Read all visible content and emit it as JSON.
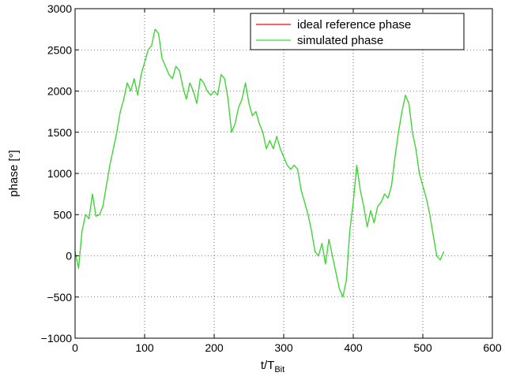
{
  "chart_data": {
    "type": "line",
    "title": "",
    "xlabel_main": "t/T",
    "xlabel_sub": "Bit",
    "ylabel": "phase [°]",
    "xlim": [
      0,
      600
    ],
    "ylim": [
      -1000,
      3000
    ],
    "xticks": [
      0,
      100,
      200,
      300,
      400,
      500,
      600
    ],
    "yticks": [
      -1000,
      -500,
      0,
      500,
      1000,
      1500,
      2000,
      2500,
      3000
    ],
    "grid": true,
    "legend_position": "top-right",
    "series": [
      {
        "name": "ideal reference phase",
        "color": "#ff0000",
        "x": [
          0,
          5,
          10,
          15,
          20,
          25,
          30,
          35,
          40,
          45,
          50,
          55,
          60,
          65,
          70,
          75,
          80,
          85,
          90,
          95,
          100,
          105,
          110,
          115,
          120,
          125,
          130,
          135,
          140,
          145,
          150,
          155,
          160,
          165,
          170,
          175,
          180,
          185,
          190,
          195,
          200,
          205,
          210,
          215,
          220,
          225,
          230,
          235,
          240,
          245,
          250,
          255,
          260,
          265,
          270,
          275,
          280,
          285,
          290,
          295,
          300,
          305,
          310,
          315,
          320,
          325,
          330,
          335,
          340,
          345,
          350,
          355,
          360,
          365,
          370,
          375,
          380,
          385,
          390,
          395,
          400,
          405,
          410,
          415,
          420,
          425,
          430,
          435,
          440,
          445,
          450,
          455,
          460,
          465,
          470,
          475,
          480,
          485,
          490,
          495,
          500,
          505,
          510,
          515,
          520,
          525,
          530
        ],
        "y": [
          50,
          -150,
          300,
          500,
          450,
          750,
          480,
          500,
          600,
          850,
          1100,
          1300,
          1500,
          1750,
          1900,
          2100,
          2000,
          2150,
          1950,
          2200,
          2350,
          2500,
          2550,
          2750,
          2700,
          2400,
          2300,
          2200,
          2150,
          2300,
          2250,
          2050,
          1900,
          2100,
          2000,
          1850,
          2150,
          2100,
          2000,
          1950,
          2000,
          1950,
          2200,
          2150,
          1900,
          1500,
          1600,
          1800,
          1900,
          2100,
          1850,
          1700,
          1750,
          1600,
          1500,
          1300,
          1400,
          1300,
          1450,
          1300,
          1200,
          1100,
          1050,
          1100,
          1050,
          800,
          650,
          500,
          300,
          50,
          0,
          150,
          -100,
          200,
          0,
          -200,
          -400,
          -500,
          -300,
          300,
          650,
          1100,
          800,
          600,
          350,
          550,
          400,
          600,
          650,
          750,
          700,
          850,
          1200,
          1500,
          1750,
          1950,
          1850,
          1500,
          1300,
          1000,
          850,
          700,
          500,
          250,
          0,
          -50,
          50
        ]
      },
      {
        "name": "simulated phase",
        "color": "#33dd33",
        "x": [
          0,
          5,
          10,
          15,
          20,
          25,
          30,
          35,
          40,
          45,
          50,
          55,
          60,
          65,
          70,
          75,
          80,
          85,
          90,
          95,
          100,
          105,
          110,
          115,
          120,
          125,
          130,
          135,
          140,
          145,
          150,
          155,
          160,
          165,
          170,
          175,
          180,
          185,
          190,
          195,
          200,
          205,
          210,
          215,
          220,
          225,
          230,
          235,
          240,
          245,
          250,
          255,
          260,
          265,
          270,
          275,
          280,
          285,
          290,
          295,
          300,
          305,
          310,
          315,
          320,
          325,
          330,
          335,
          340,
          345,
          350,
          355,
          360,
          365,
          370,
          375,
          380,
          385,
          390,
          395,
          400,
          405,
          410,
          415,
          420,
          425,
          430,
          435,
          440,
          445,
          450,
          455,
          460,
          465,
          470,
          475,
          480,
          485,
          490,
          495,
          500,
          505,
          510,
          515,
          520,
          525,
          530
        ],
        "y": [
          50,
          -150,
          300,
          500,
          450,
          750,
          480,
          500,
          600,
          850,
          1100,
          1300,
          1500,
          1750,
          1900,
          2100,
          2000,
          2150,
          1950,
          2200,
          2350,
          2500,
          2550,
          2750,
          2700,
          2400,
          2300,
          2200,
          2150,
          2300,
          2250,
          2050,
          1900,
          2100,
          2000,
          1850,
          2150,
          2100,
          2000,
          1950,
          2000,
          1950,
          2200,
          2150,
          1900,
          1500,
          1600,
          1800,
          1900,
          2100,
          1850,
          1700,
          1750,
          1600,
          1500,
          1300,
          1400,
          1300,
          1450,
          1300,
          1200,
          1100,
          1050,
          1100,
          1050,
          800,
          650,
          500,
          300,
          50,
          0,
          150,
          -100,
          200,
          0,
          -200,
          -400,
          -500,
          -300,
          300,
          650,
          1100,
          800,
          600,
          350,
          550,
          400,
          600,
          650,
          750,
          700,
          850,
          1200,
          1500,
          1750,
          1950,
          1850,
          1500,
          1300,
          1000,
          850,
          700,
          500,
          250,
          0,
          -50,
          50
        ]
      }
    ]
  }
}
